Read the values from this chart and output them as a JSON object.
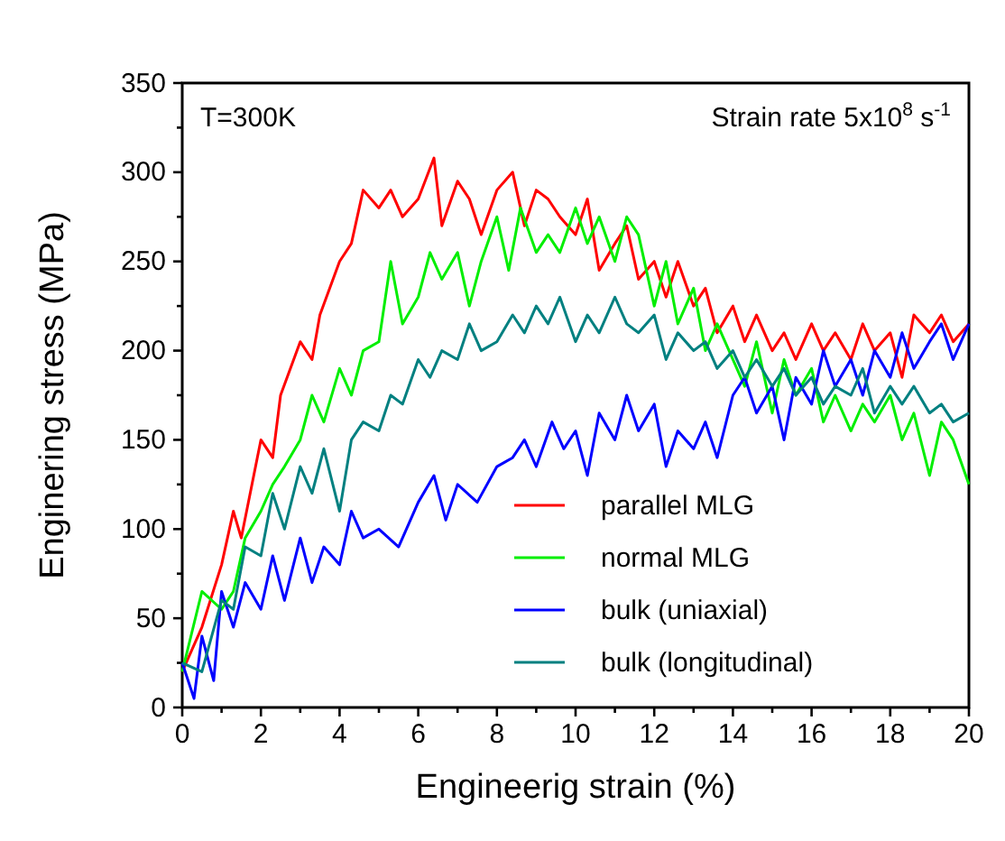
{
  "chart_data": {
    "type": "line",
    "xlabel": "Engineerig strain (%)",
    "ylabel": "Enginering stress (MPa)",
    "xlim": [
      0,
      20
    ],
    "ylim": [
      0,
      350
    ],
    "xticks": [
      0,
      {
        "value": 1,
        "label": null
      },
      2,
      {
        "value": 3,
        "label": null
      },
      4,
      {
        "value": 5,
        "label": null
      },
      6,
      {
        "value": 7,
        "label": null
      },
      8,
      {
        "value": 9,
        "label": null
      },
      10,
      {
        "value": 11,
        "label": null
      },
      12,
      {
        "value": 13,
        "label": null
      },
      14,
      {
        "value": 15,
        "label": null
      },
      16,
      {
        "value": 17,
        "label": null
      },
      18,
      {
        "value": 19,
        "label": null
      },
      20
    ],
    "yticks": [
      0,
      {
        "value": 25,
        "label": null
      },
      50,
      {
        "value": 75,
        "label": null
      },
      100,
      {
        "value": 125,
        "label": null
      },
      150,
      {
        "value": 175,
        "label": null
      },
      200,
      {
        "value": 225,
        "label": null
      },
      250,
      {
        "value": 275,
        "label": null
      },
      300,
      {
        "value": 325,
        "label": null
      },
      350
    ],
    "grid": false,
    "legend": "bottom right",
    "marker": "none",
    "line_style": "solid",
    "annotations": [
      "T=300K",
      "Strain rate 5x10$^{8}$ s$^{-1}$"
    ],
    "series": [
      {
        "name": "parallel MLG",
        "color": "#ff0000",
        "x": [
          0,
          0.5,
          1,
          1.3,
          1.5,
          2,
          2.3,
          2.5,
          3,
          3.3,
          3.5,
          4,
          4.3,
          4.6,
          5,
          5.3,
          5.6,
          6,
          6.4,
          6.6,
          7,
          7.3,
          7.6,
          8,
          8.4,
          8.7,
          9,
          9.3,
          9.6,
          10,
          10.3,
          10.6,
          11,
          11.3,
          11.6,
          12,
          12.3,
          12.6,
          13,
          13.3,
          13.6,
          14,
          14.3,
          14.6,
          15,
          15.3,
          15.6,
          16,
          16.3,
          16.6,
          17,
          17.3,
          17.6,
          18,
          18.3,
          18.6,
          19,
          19.3,
          19.6,
          20
        ],
        "values": [
          20,
          45,
          80,
          110,
          95,
          150,
          140,
          175,
          205,
          195,
          220,
          250,
          260,
          290,
          280,
          290,
          275,
          285,
          308,
          270,
          295,
          285,
          265,
          290,
          300,
          270,
          290,
          285,
          275,
          265,
          285,
          245,
          260,
          270,
          240,
          250,
          230,
          250,
          225,
          235,
          210,
          225,
          205,
          220,
          200,
          210,
          195,
          215,
          200,
          210,
          195,
          215,
          200,
          210,
          185,
          220,
          210,
          220,
          205,
          215
        ]
      },
      {
        "name": "normal MLG",
        "color": "#00ee00",
        "x": [
          0,
          0.5,
          1,
          1.3,
          1.6,
          2,
          2.3,
          2.6,
          3,
          3.3,
          3.6,
          4,
          4.3,
          4.6,
          5,
          5.3,
          5.6,
          6,
          6.3,
          6.6,
          7,
          7.3,
          7.6,
          8,
          8.3,
          8.6,
          9,
          9.3,
          9.6,
          10,
          10.3,
          10.6,
          11,
          11.3,
          11.6,
          12,
          12.3,
          12.6,
          13,
          13.3,
          13.6,
          14,
          14.3,
          14.6,
          15,
          15.3,
          15.6,
          16,
          16.3,
          16.6,
          17,
          17.3,
          17.6,
          18,
          18.3,
          18.6,
          19,
          19.3,
          19.6,
          20
        ],
        "values": [
          20,
          65,
          55,
          65,
          95,
          110,
          125,
          135,
          150,
          175,
          160,
          190,
          175,
          200,
          205,
          250,
          215,
          230,
          255,
          240,
          255,
          225,
          250,
          275,
          245,
          280,
          255,
          265,
          255,
          280,
          260,
          275,
          250,
          275,
          265,
          225,
          250,
          215,
          235,
          200,
          215,
          195,
          180,
          205,
          165,
          195,
          175,
          190,
          160,
          175,
          155,
          170,
          160,
          175,
          150,
          165,
          130,
          160,
          150,
          125
        ]
      },
      {
        "name": "bulk (uniaxial)",
        "color": "#0000ff",
        "x": [
          0,
          0.3,
          0.5,
          0.8,
          1,
          1.3,
          1.6,
          2,
          2.3,
          2.6,
          3,
          3.3,
          3.6,
          4,
          4.3,
          4.6,
          5,
          5.5,
          6,
          6.4,
          6.7,
          7,
          7.5,
          8,
          8.4,
          8.7,
          9,
          9.4,
          9.7,
          10,
          10.3,
          10.6,
          11,
          11.3,
          11.6,
          12,
          12.3,
          12.6,
          13,
          13.3,
          13.6,
          14,
          14.3,
          14.6,
          15,
          15.3,
          15.6,
          16,
          16.3,
          16.6,
          17,
          17.3,
          17.6,
          18,
          18.3,
          18.6,
          19,
          19.3,
          19.6,
          20
        ],
        "values": [
          25,
          5,
          40,
          15,
          65,
          45,
          70,
          55,
          85,
          60,
          95,
          70,
          90,
          80,
          110,
          95,
          100,
          90,
          115,
          130,
          105,
          125,
          115,
          135,
          140,
          150,
          135,
          160,
          145,
          155,
          130,
          165,
          150,
          175,
          155,
          170,
          135,
          155,
          145,
          160,
          140,
          175,
          185,
          165,
          180,
          150,
          185,
          170,
          200,
          180,
          195,
          175,
          200,
          185,
          210,
          190,
          205,
          215,
          195,
          215
        ]
      },
      {
        "name": "bulk (longitudinal)",
        "color": "#008080",
        "x": [
          0,
          0.5,
          1,
          1.3,
          1.6,
          2,
          2.3,
          2.6,
          3,
          3.3,
          3.6,
          4,
          4.3,
          4.6,
          5,
          5.3,
          5.6,
          6,
          6.3,
          6.6,
          7,
          7.3,
          7.6,
          8,
          8.4,
          8.7,
          9,
          9.3,
          9.6,
          10,
          10.3,
          10.6,
          11,
          11.3,
          11.6,
          12,
          12.3,
          12.6,
          13,
          13.3,
          13.6,
          14,
          14.3,
          14.6,
          15,
          15.3,
          15.6,
          16,
          16.3,
          16.6,
          17,
          17.3,
          17.6,
          18,
          18.3,
          18.6,
          19,
          19.3,
          19.6,
          20
        ],
        "values": [
          25,
          20,
          60,
          55,
          90,
          85,
          120,
          100,
          135,
          120,
          145,
          110,
          150,
          160,
          155,
          175,
          170,
          195,
          185,
          200,
          195,
          215,
          200,
          205,
          220,
          210,
          225,
          215,
          230,
          205,
          220,
          210,
          230,
          215,
          210,
          220,
          195,
          210,
          200,
          205,
          190,
          200,
          185,
          195,
          180,
          190,
          175,
          185,
          170,
          180,
          175,
          190,
          165,
          180,
          170,
          180,
          165,
          170,
          160,
          165
        ]
      }
    ]
  }
}
